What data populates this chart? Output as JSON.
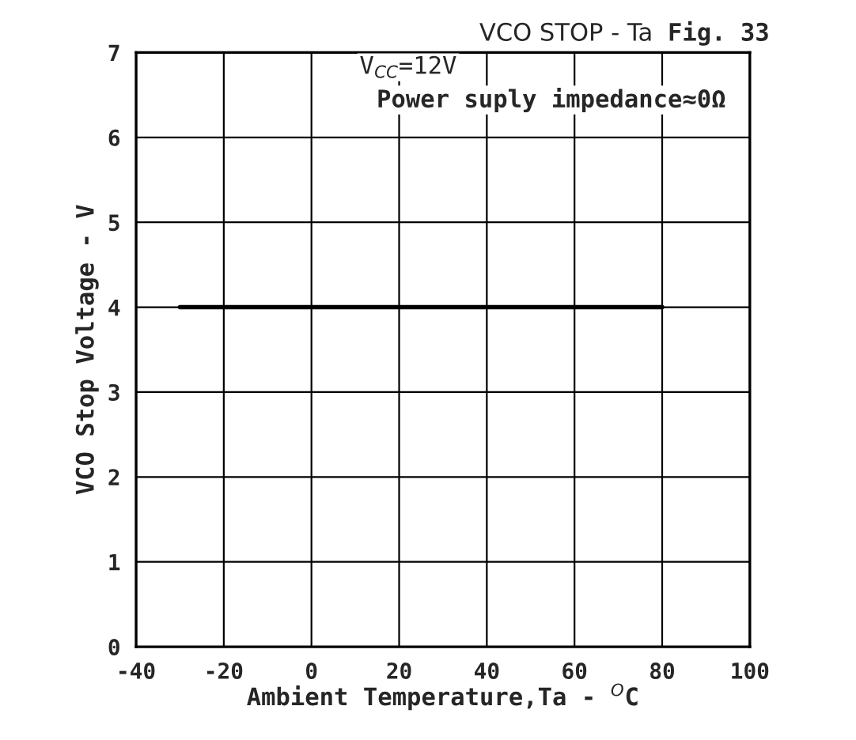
{
  "chart_data": {
    "type": "line",
    "title": "VCO STOP - Ta",
    "xlabel": "Ambient Temperature,Ta - $^{O}$C",
    "ylabel": "VCO Stop Voltage - V",
    "annotations": [
      "Fig. 33",
      "V$_{CC}$=12V",
      "Power suply impedance≈0Ω"
    ],
    "x": [
      -30,
      80
    ],
    "series": [
      {
        "color": "#000000",
        "values": [
          4,
          4
        ]
      }
    ],
    "xlim": [
      -40,
      100
    ],
    "xticks": [
      -40,
      -20,
      0,
      20,
      40,
      60,
      80,
      100
    ],
    "ylim": [
      0,
      7
    ],
    "yticks": [
      0,
      1,
      2,
      3,
      4,
      5,
      6,
      7
    ],
    "grid": true,
    "marker": "none",
    "line_style": "solid"
  }
}
